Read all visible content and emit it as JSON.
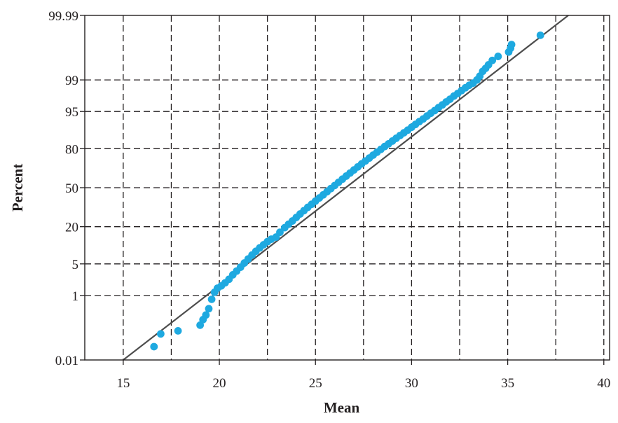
{
  "chart_data": {
    "type": "scatter",
    "subtype": "normal-probability-plot",
    "xlabel": "Mean",
    "ylabel": "Percent",
    "xlim": [
      13,
      40.3
    ],
    "x_ticks": [
      15,
      20,
      25,
      30,
      35,
      40
    ],
    "x_tick_labels": [
      "15",
      "20",
      "25",
      "30",
      "35",
      "40"
    ],
    "y_scale": "normal-probability",
    "ylim_percent": [
      0.01,
      99.99
    ],
    "y_ticks_percent": [
      0.01,
      1,
      5,
      20,
      50,
      80,
      95,
      99,
      99.99
    ],
    "y_tick_labels": [
      "0.01",
      "1",
      "5",
      "20",
      "50",
      "80",
      "95",
      "99",
      "99.99"
    ],
    "grid": true,
    "grid_style": "dashed",
    "fit_line": {
      "x": [
        15.0,
        38.15
      ],
      "percent": [
        0.01,
        99.99
      ],
      "color": "#4d4d4d"
    },
    "marker_color": "#1ea9e0",
    "points": {
      "x": [
        16.6,
        16.95,
        17.85,
        19.0,
        19.15,
        19.3,
        19.45,
        19.6,
        19.75,
        19.9,
        20.1,
        20.3,
        20.5,
        20.7,
        20.9,
        21.1,
        21.3,
        21.5,
        21.7,
        21.9,
        22.1,
        22.3,
        22.5,
        22.7,
        22.95,
        23.15,
        23.4,
        23.6,
        23.8,
        24.0,
        24.2,
        24.4,
        24.6,
        24.8,
        25.0,
        25.2,
        25.4,
        25.6,
        25.8,
        26.0,
        26.2,
        26.4,
        26.6,
        26.8,
        27.0,
        27.2,
        27.4,
        27.6,
        27.8,
        28.0,
        28.2,
        28.4,
        28.6,
        28.8,
        29.0,
        29.2,
        29.4,
        29.6,
        29.8,
        30.0,
        30.2,
        30.4,
        30.6,
        30.8,
        31.0,
        31.2,
        31.4,
        31.6,
        31.8,
        32.0,
        32.2,
        32.4,
        32.6,
        32.8,
        33.0,
        33.2,
        33.4,
        33.55,
        33.7,
        33.85,
        34.0,
        34.2,
        34.5,
        35.05,
        35.15,
        35.2,
        36.7
      ],
      "percent": [
        0.03,
        0.08,
        0.1,
        0.15,
        0.22,
        0.3,
        0.45,
        0.8,
        1.2,
        1.5,
        1.7,
        2.0,
        2.4,
        3.0,
        3.6,
        4.3,
        5.2,
        6.2,
        7.3,
        8.5,
        9.7,
        10.9,
        12.2,
        13.3,
        14.3,
        16.8,
        19.4,
        21.5,
        23.6,
        26.0,
        28.5,
        31.0,
        33.6,
        36.0,
        38.6,
        41.2,
        43.8,
        46.5,
        49.2,
        51.9,
        54.6,
        57.3,
        59.9,
        62.4,
        64.9,
        67.3,
        69.6,
        71.8,
        73.9,
        75.9,
        77.8,
        79.6,
        81.3,
        82.8,
        84.3,
        85.7,
        87.0,
        88.2,
        89.3,
        90.4,
        91.4,
        92.3,
        93.1,
        93.9,
        94.6,
        95.2,
        95.8,
        96.3,
        96.8,
        97.2,
        97.6,
        97.9,
        98.2,
        98.45,
        98.65,
        98.8,
        99.0,
        99.2,
        99.4,
        99.5,
        99.6,
        99.7,
        99.77,
        99.83,
        99.87,
        99.9,
        99.95
      ]
    }
  }
}
